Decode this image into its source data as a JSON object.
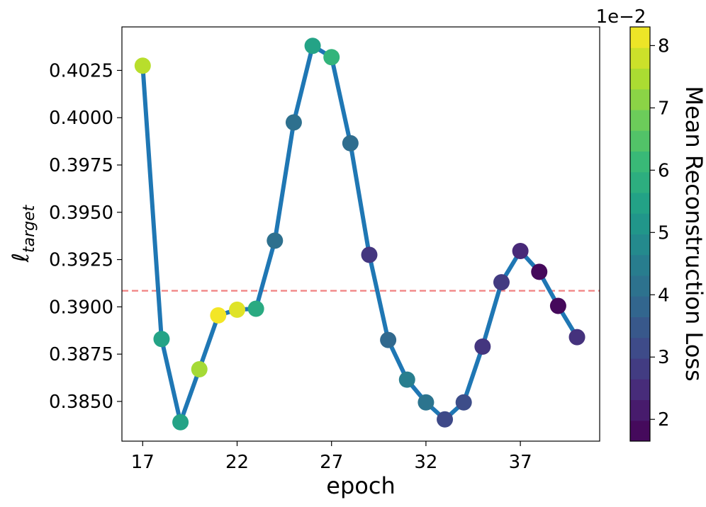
{
  "chart_data": {
    "type": "line",
    "xlabel": "epoch",
    "ylabel_main": "ℓ",
    "ylabel_sub": "target",
    "x": [
      17,
      18,
      19,
      20,
      21,
      22,
      23,
      24,
      25,
      26,
      27,
      28,
      29,
      30,
      31,
      32,
      33,
      34,
      35,
      36,
      37,
      38,
      39,
      40
    ],
    "y": [
      0.40275,
      0.3883,
      0.3839,
      0.3867,
      0.38955,
      0.38985,
      0.3899,
      0.3935,
      0.39975,
      0.4038,
      0.4032,
      0.39865,
      0.39275,
      0.38825,
      0.38615,
      0.38495,
      0.38405,
      0.38495,
      0.3879,
      0.3913,
      0.39295,
      0.39185,
      0.39005,
      0.3884
    ],
    "color_values": [
      7.6,
      5.5,
      5.5,
      7.4,
      8.2,
      8.0,
      5.7,
      4.1,
      4.1,
      5.5,
      6.0,
      4.0,
      2.7,
      3.9,
      4.5,
      4.2,
      3.1,
      3.2,
      2.7,
      2.8,
      2.4,
      1.8,
      1.8,
      2.6
    ],
    "xticks": [
      17,
      22,
      27,
      32,
      37
    ],
    "yticks": [
      0.385,
      0.3875,
      0.39,
      0.3925,
      0.395,
      0.3975,
      0.4,
      0.4025
    ],
    "ytick_labels": [
      "0.3850",
      "0.3875",
      "0.3900",
      "0.3925",
      "0.3950",
      "0.3975",
      "0.4000",
      "0.4025"
    ],
    "xlim": [
      15.9,
      41.2
    ],
    "ylim": [
      0.3829,
      0.4048
    ],
    "reference_line": {
      "y": 0.39085,
      "color": "#f08080",
      "style": "dashed"
    },
    "line_color": "#1f77b4",
    "grid": false,
    "colorbar": {
      "label": "Mean Reconstruction Loss",
      "multiplier_label": "1e−2",
      "range": [
        1.65,
        8.3
      ],
      "ticks": [
        2,
        3,
        4,
        5,
        6,
        7,
        8
      ],
      "tick_labels": [
        "2",
        "3",
        "4",
        "5",
        "6",
        "7",
        "8"
      ],
      "colormap": "viridis",
      "levels": 20
    }
  }
}
